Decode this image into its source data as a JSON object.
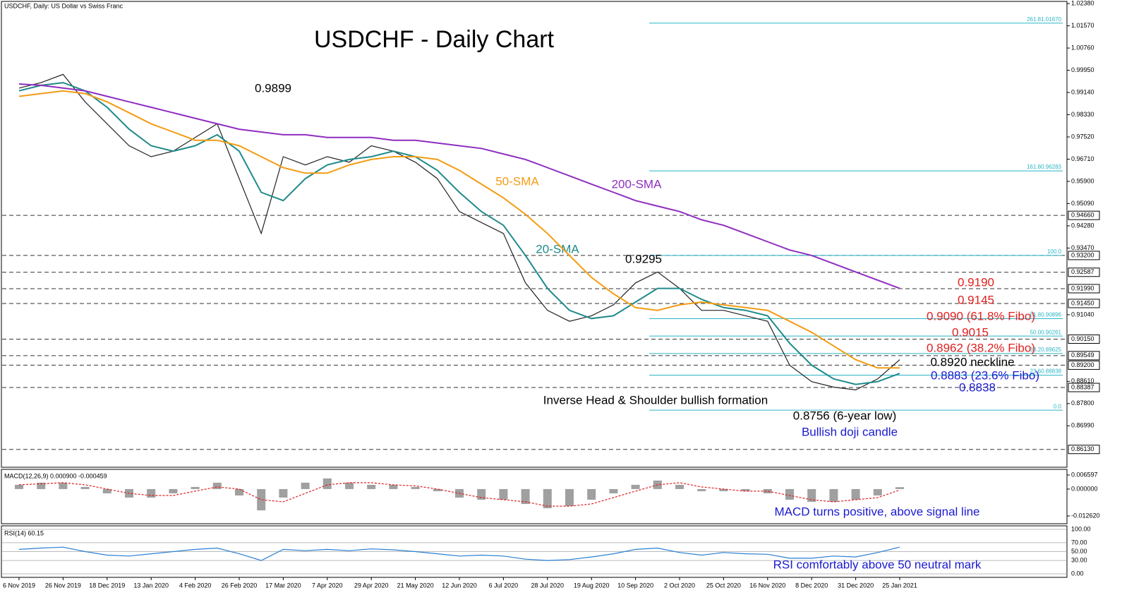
{
  "header": "USDCHF, Daily:  US Dollar vs Swiss Franc",
  "chart_data": [
    {
      "type": "line",
      "title": "USDCHF - Daily Chart",
      "categories": [
        "6 Nov 2019",
        null,
        "26 Nov 2019",
        null,
        "18 Dec 2019",
        null,
        "13 Jan 2020",
        null,
        "4 Feb 2020",
        null,
        "26 Feb 2020",
        null,
        "17 Mar 2020",
        null,
        "7 Apr 2020",
        null,
        "29 Apr 2020",
        null,
        "21 May 2020",
        null,
        "12 Jun 2020",
        null,
        "6 Jul 2020",
        null,
        "28 Jul 2020",
        null,
        "19 Aug 2020",
        null,
        "10 Sep 2020",
        null,
        "2 Oct 2020",
        null,
        "25 Oct 2020",
        null,
        "16 Nov 2020",
        null,
        "8 Dec 2020",
        null,
        "31 Dec 2020",
        null,
        "25 Jan 2021"
      ],
      "series": [
        {
          "color": "#222222",
          "values": [
            0.993,
            0.995,
            0.998,
            0.988,
            0.98,
            0.972,
            0.968,
            0.97,
            0.975,
            0.98,
            0.96,
            0.94,
            0.968,
            0.965,
            0.968,
            0.966,
            0.972,
            0.97,
            0.966,
            0.96,
            0.948,
            0.944,
            0.94,
            0.922,
            0.912,
            0.908,
            0.91,
            0.914,
            0.922,
            0.926,
            0.92,
            0.912,
            0.912,
            0.91,
            0.908,
            0.892,
            0.886,
            0.884,
            0.883,
            0.887,
            0.894
          ]
        },
        {
          "name": "20-SMA",
          "color": "#1f8a8a",
          "values": [
            0.992,
            0.994,
            0.995,
            0.992,
            0.986,
            0.978,
            0.972,
            0.97,
            0.972,
            0.976,
            0.97,
            0.955,
            0.952,
            0.96,
            0.965,
            0.967,
            0.968,
            0.97,
            0.968,
            0.963,
            0.955,
            0.948,
            0.943,
            0.932,
            0.92,
            0.912,
            0.909,
            0.91,
            0.915,
            0.92,
            0.92,
            0.916,
            0.913,
            0.912,
            0.91,
            0.9,
            0.892,
            0.887,
            0.885,
            0.886,
            0.889
          ]
        },
        {
          "name": "50-SMA",
          "color": "#f39c12",
          "values": [
            0.99,
            0.991,
            0.992,
            0.991,
            0.988,
            0.984,
            0.98,
            0.977,
            0.974,
            0.974,
            0.972,
            0.968,
            0.964,
            0.962,
            0.962,
            0.965,
            0.967,
            0.968,
            0.968,
            0.967,
            0.963,
            0.958,
            0.953,
            0.947,
            0.94,
            0.932,
            0.924,
            0.918,
            0.913,
            0.912,
            0.914,
            0.915,
            0.914,
            0.913,
            0.912,
            0.908,
            0.904,
            0.899,
            0.894,
            0.891,
            0.891
          ]
        },
        {
          "name": "200-SMA",
          "color": "#8e2ec0",
          "values": [
            0.9945,
            0.994,
            0.993,
            0.992,
            0.99,
            0.988,
            0.986,
            0.984,
            0.982,
            0.98,
            0.978,
            0.977,
            0.976,
            0.976,
            0.975,
            0.975,
            0.975,
            0.974,
            0.974,
            0.973,
            0.972,
            0.971,
            0.969,
            0.967,
            0.964,
            0.961,
            0.958,
            0.955,
            0.952,
            0.95,
            0.948,
            0.945,
            0.943,
            0.94,
            0.937,
            0.934,
            0.932,
            0.929,
            0.926,
            0.923,
            0.92
          ]
        }
      ],
      "ylim": [
        0.8548,
        1.0246
      ],
      "yticks": [
        {
          "value": 1.0238,
          "label": "1.02380"
        },
        {
          "value": 1.0157,
          "label": "1.01570"
        },
        {
          "value": 1.0076,
          "label": "1.00760"
        },
        {
          "value": 0.9995,
          "label": "0.99950"
        },
        {
          "value": 0.9914,
          "label": "0.99140"
        },
        {
          "value": 0.9833,
          "label": "0.98330"
        },
        {
          "value": 0.9752,
          "label": "0.97520"
        },
        {
          "value": 0.9671,
          "label": "0.96710"
        },
        {
          "value": 0.959,
          "label": "0.95900"
        },
        {
          "value": 0.9509,
          "label": "0.95090"
        },
        {
          "value": 0.9428,
          "label": "0.94280"
        },
        {
          "value": 0.9347,
          "label": "0.93470"
        },
        {
          "value": 0.9104,
          "label": "0.91040"
        },
        {
          "value": 0.8861,
          "label": "0.88610"
        },
        {
          "value": 0.878,
          "label": "0.87800"
        },
        {
          "value": 0.8699,
          "label": "0.86990"
        }
      ],
      "levels": [
        {
          "value": 0.9466,
          "label": "0.94660"
        },
        {
          "value": 0.932,
          "label": "0.93200"
        },
        {
          "value": 0.92587,
          "label": "0.92587"
        },
        {
          "value": 0.9199,
          "label": "0.91990"
        },
        {
          "value": 0.9145,
          "label": "0.91450"
        },
        {
          "value": 0.9015,
          "label": "0.90150"
        },
        {
          "value": 0.89549,
          "label": "0.89549"
        },
        {
          "value": 0.892,
          "label": "0.89200"
        },
        {
          "value": 0.88387,
          "label": "0.88387"
        },
        {
          "value": 0.8613,
          "label": "0.86130"
        }
      ],
      "fibo": [
        {
          "value": 1.0167,
          "label": "261.81.01670"
        },
        {
          "value": 0.96283,
          "label": "161.80.96283"
        },
        {
          "value": 0.932,
          "label": "100.0"
        },
        {
          "value": 0.90896,
          "label": "61.80.90896"
        },
        {
          "value": 0.90261,
          "label": "50.00.90261"
        },
        {
          "value": 0.89625,
          "label": "38.20.89625"
        },
        {
          "value": 0.88838,
          "label": "23.60.88838"
        },
        {
          "value": 0.8756,
          "label": "0.0"
        }
      ],
      "annotations": [
        {
          "text": "0.9899",
          "color": "#000000"
        },
        {
          "text": "0.9295",
          "color": "#000000"
        },
        {
          "text": "0.9190",
          "color": "#e02020"
        },
        {
          "text": "0.9145",
          "color": "#e02020"
        },
        {
          "text": "0.9090 (61.8% Fibo)",
          "color": "#e02020"
        },
        {
          "text": "0.9015",
          "color": "#e02020"
        },
        {
          "text": "0.8962 (38.2% Fibo)",
          "color": "#e02020"
        },
        {
          "text": "0.8920 neckline",
          "color": "#000000"
        },
        {
          "text": "0.8883 (23.6% Fibo)",
          "color": "#1a1ad0"
        },
        {
          "text": "0.8838",
          "color": "#1a1ad0"
        },
        {
          "text": "Inverse Head & Shoulder bullish formation",
          "color": "#000000"
        },
        {
          "text": "0.8756 (6-year low)",
          "color": "#000000"
        },
        {
          "text": "Bullish doji candle",
          "color": "#1a1ad0"
        }
      ]
    },
    {
      "type": "bar",
      "title": "MACD(12,26,9) 0.000900 -0.000459",
      "values": [
        0.002,
        0.003,
        0.003,
        0.001,
        -0.002,
        -0.004,
        -0.004,
        -0.002,
        0.001,
        0.003,
        -0.003,
        -0.01,
        -0.004,
        0.003,
        0.005,
        0.003,
        0.002,
        0.002,
        0.001,
        -0.001,
        -0.004,
        -0.005,
        -0.005,
        -0.007,
        -0.009,
        -0.008,
        -0.005,
        -0.002,
        0.002,
        0.004,
        0.002,
        -0.001,
        -0.001,
        -0.001,
        -0.002,
        -0.005,
        -0.006,
        -0.006,
        -0.005,
        -0.003,
        0.0009
      ],
      "color": "#a0a0a0",
      "signal": [
        0.002,
        0.0025,
        0.003,
        0.002,
        0.0,
        -0.002,
        -0.003,
        -0.003,
        -0.001,
        0.001,
        0.0,
        -0.005,
        -0.006,
        -0.002,
        0.002,
        0.003,
        0.003,
        0.002,
        0.0015,
        0.0,
        -0.002,
        -0.004,
        -0.005,
        -0.006,
        -0.008,
        -0.008,
        -0.007,
        -0.004,
        -0.001,
        0.002,
        0.003,
        0.001,
        0.0,
        -0.001,
        -0.001,
        -0.003,
        -0.005,
        -0.006,
        -0.005,
        -0.004,
        -0.000459
      ],
      "signal_color": "#e02020",
      "ylim": [
        -0.01626,
        0.00925
      ],
      "yticks": [
        {
          "value": 0.006597,
          "label": "0.006597"
        },
        {
          "value": 0,
          "label": "0.000000"
        },
        {
          "value": -0.01262,
          "label": "-0.012620"
        }
      ],
      "annotation": {
        "text": "MACD turns positive, above signal line",
        "color": "#1a1ad0"
      }
    },
    {
      "type": "line",
      "title": "RSI(14) 60.15",
      "values": [
        55,
        58,
        60,
        50,
        42,
        40,
        45,
        50,
        55,
        58,
        45,
        30,
        55,
        52,
        55,
        52,
        56,
        54,
        50,
        45,
        40,
        42,
        40,
        33,
        30,
        32,
        38,
        45,
        55,
        58,
        48,
        42,
        48,
        45,
        44,
        35,
        35,
        40,
        38,
        48,
        60.15
      ],
      "color": "#2a7fd4",
      "ylim": [
        -8,
        108
      ],
      "yticks": [
        {
          "value": 100,
          "label": "100.00"
        },
        {
          "value": 70,
          "label": "70.00"
        },
        {
          "value": 50,
          "label": "50.00"
        },
        {
          "value": 30,
          "label": "30.00"
        },
        {
          "value": 0,
          "label": "0.00"
        }
      ],
      "annotation": {
        "text": "RSI comfortably above 50 neutral mark",
        "color": "#1a1ad0"
      }
    }
  ]
}
